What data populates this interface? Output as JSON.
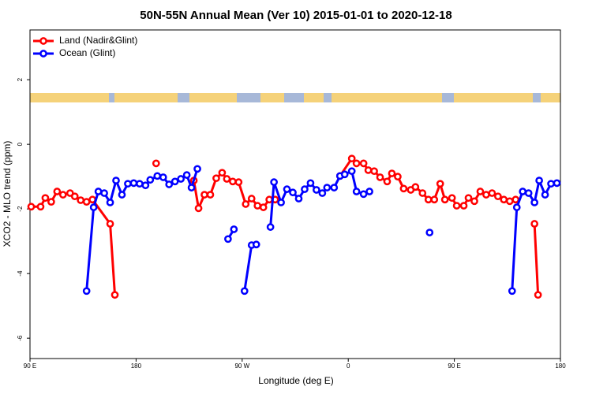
{
  "chart_data": {
    "type": "line",
    "title": "50N-55N Annual Mean (Ver 10)   2015-01-01 to 2020-12-18",
    "xlabel": "Longitude (deg E)",
    "ylabel": "XCO2 - MLO trend (ppm)",
    "xlim": [
      90,
      540
    ],
    "xticks": [
      {
        "value": 90,
        "label": "90 E"
      },
      180,
      {
        "value": 270,
        "label": "90 W"
      },
      {
        "value": 360,
        "label": "0"
      },
      {
        "value": 450,
        "label": "90 E"
      },
      {
        "value": 540,
        "label": "180"
      }
    ],
    "ylim": [
      -6.63,
      3.54
    ],
    "yticks": [
      2,
      0,
      -2,
      -4,
      -6
    ],
    "legend": "top-left",
    "series": [
      {
        "name": "Land (Nadir&Glint)",
        "color": "#ff0000",
        "x": [
          91,
          99,
          103,
          108,
          113,
          118,
          124,
          128,
          133,
          138,
          143,
          158,
          162,
          180,
          197,
          210,
          229,
          233,
          238,
          243,
          248,
          253,
          257,
          262,
          267,
          273,
          278,
          283,
          288,
          293,
          298,
          320,
          353,
          363,
          367,
          373,
          377,
          382,
          387,
          393,
          397,
          402,
          407,
          413,
          417,
          423,
          428,
          433,
          438,
          442,
          448,
          452,
          458,
          462,
          467,
          472,
          477,
          482,
          487,
          492,
          497,
          502,
          510,
          518,
          521
        ],
        "values": [
          -1.93,
          -1.93,
          -1.66,
          -1.78,
          -1.46,
          -1.56,
          -1.51,
          -1.61,
          -1.73,
          -1.78,
          -1.71,
          -2.46,
          -4.66,
          null,
          -0.59,
          null,
          -1.12,
          -1.98,
          -1.56,
          -1.56,
          -1.05,
          -0.88,
          -1.07,
          -1.15,
          -1.17,
          -1.85,
          -1.68,
          -1.9,
          -1.95,
          -1.71,
          -1.71,
          null,
          -0.98,
          -0.44,
          -0.59,
          -0.59,
          -0.8,
          -0.83,
          -1.02,
          -1.15,
          -0.9,
          -1.0,
          -1.37,
          -1.41,
          -1.32,
          -1.51,
          -1.71,
          -1.71,
          -1.22,
          -1.71,
          -1.66,
          -1.9,
          -1.9,
          -1.66,
          -1.76,
          -1.46,
          -1.56,
          -1.51,
          -1.61,
          -1.71,
          -1.76,
          -1.71,
          null,
          -2.46,
          -4.66
        ]
      },
      {
        "name": "Ocean (Glint)",
        "color": "#0000ff",
        "x": [
          138,
          144,
          148,
          153,
          158,
          163,
          168,
          173,
          178,
          183,
          188,
          192,
          198,
          203,
          208,
          213,
          218,
          223,
          227,
          232,
          240,
          258,
          263,
          266,
          272,
          278,
          282,
          286,
          294,
          297,
          303,
          308,
          313,
          318,
          323,
          328,
          333,
          338,
          342,
          348,
          353,
          357,
          363,
          367,
          373,
          378,
          400,
          429,
          460,
          499,
          503,
          508,
          513,
          518,
          522,
          527,
          532,
          537
        ],
        "values": [
          -4.54,
          -1.95,
          -1.46,
          -1.51,
          -1.8,
          -1.12,
          -1.56,
          -1.22,
          -1.2,
          -1.22,
          -1.27,
          -1.1,
          -0.98,
          -1.02,
          -1.24,
          -1.15,
          -1.07,
          -0.95,
          -1.34,
          -0.76,
          null,
          -2.93,
          -2.63,
          null,
          -4.54,
          -3.12,
          -3.1,
          null,
          -2.56,
          -1.17,
          -1.8,
          -1.39,
          -1.49,
          -1.68,
          -1.39,
          -1.2,
          -1.41,
          -1.51,
          -1.34,
          -1.34,
          -0.98,
          -0.93,
          -0.83,
          -1.46,
          -1.54,
          -1.46,
          null,
          -2.73,
          null,
          -4.54,
          -1.95,
          -1.46,
          -1.51,
          -1.8,
          -1.12,
          -1.56,
          -1.22,
          -1.2
        ]
      }
    ]
  }
}
